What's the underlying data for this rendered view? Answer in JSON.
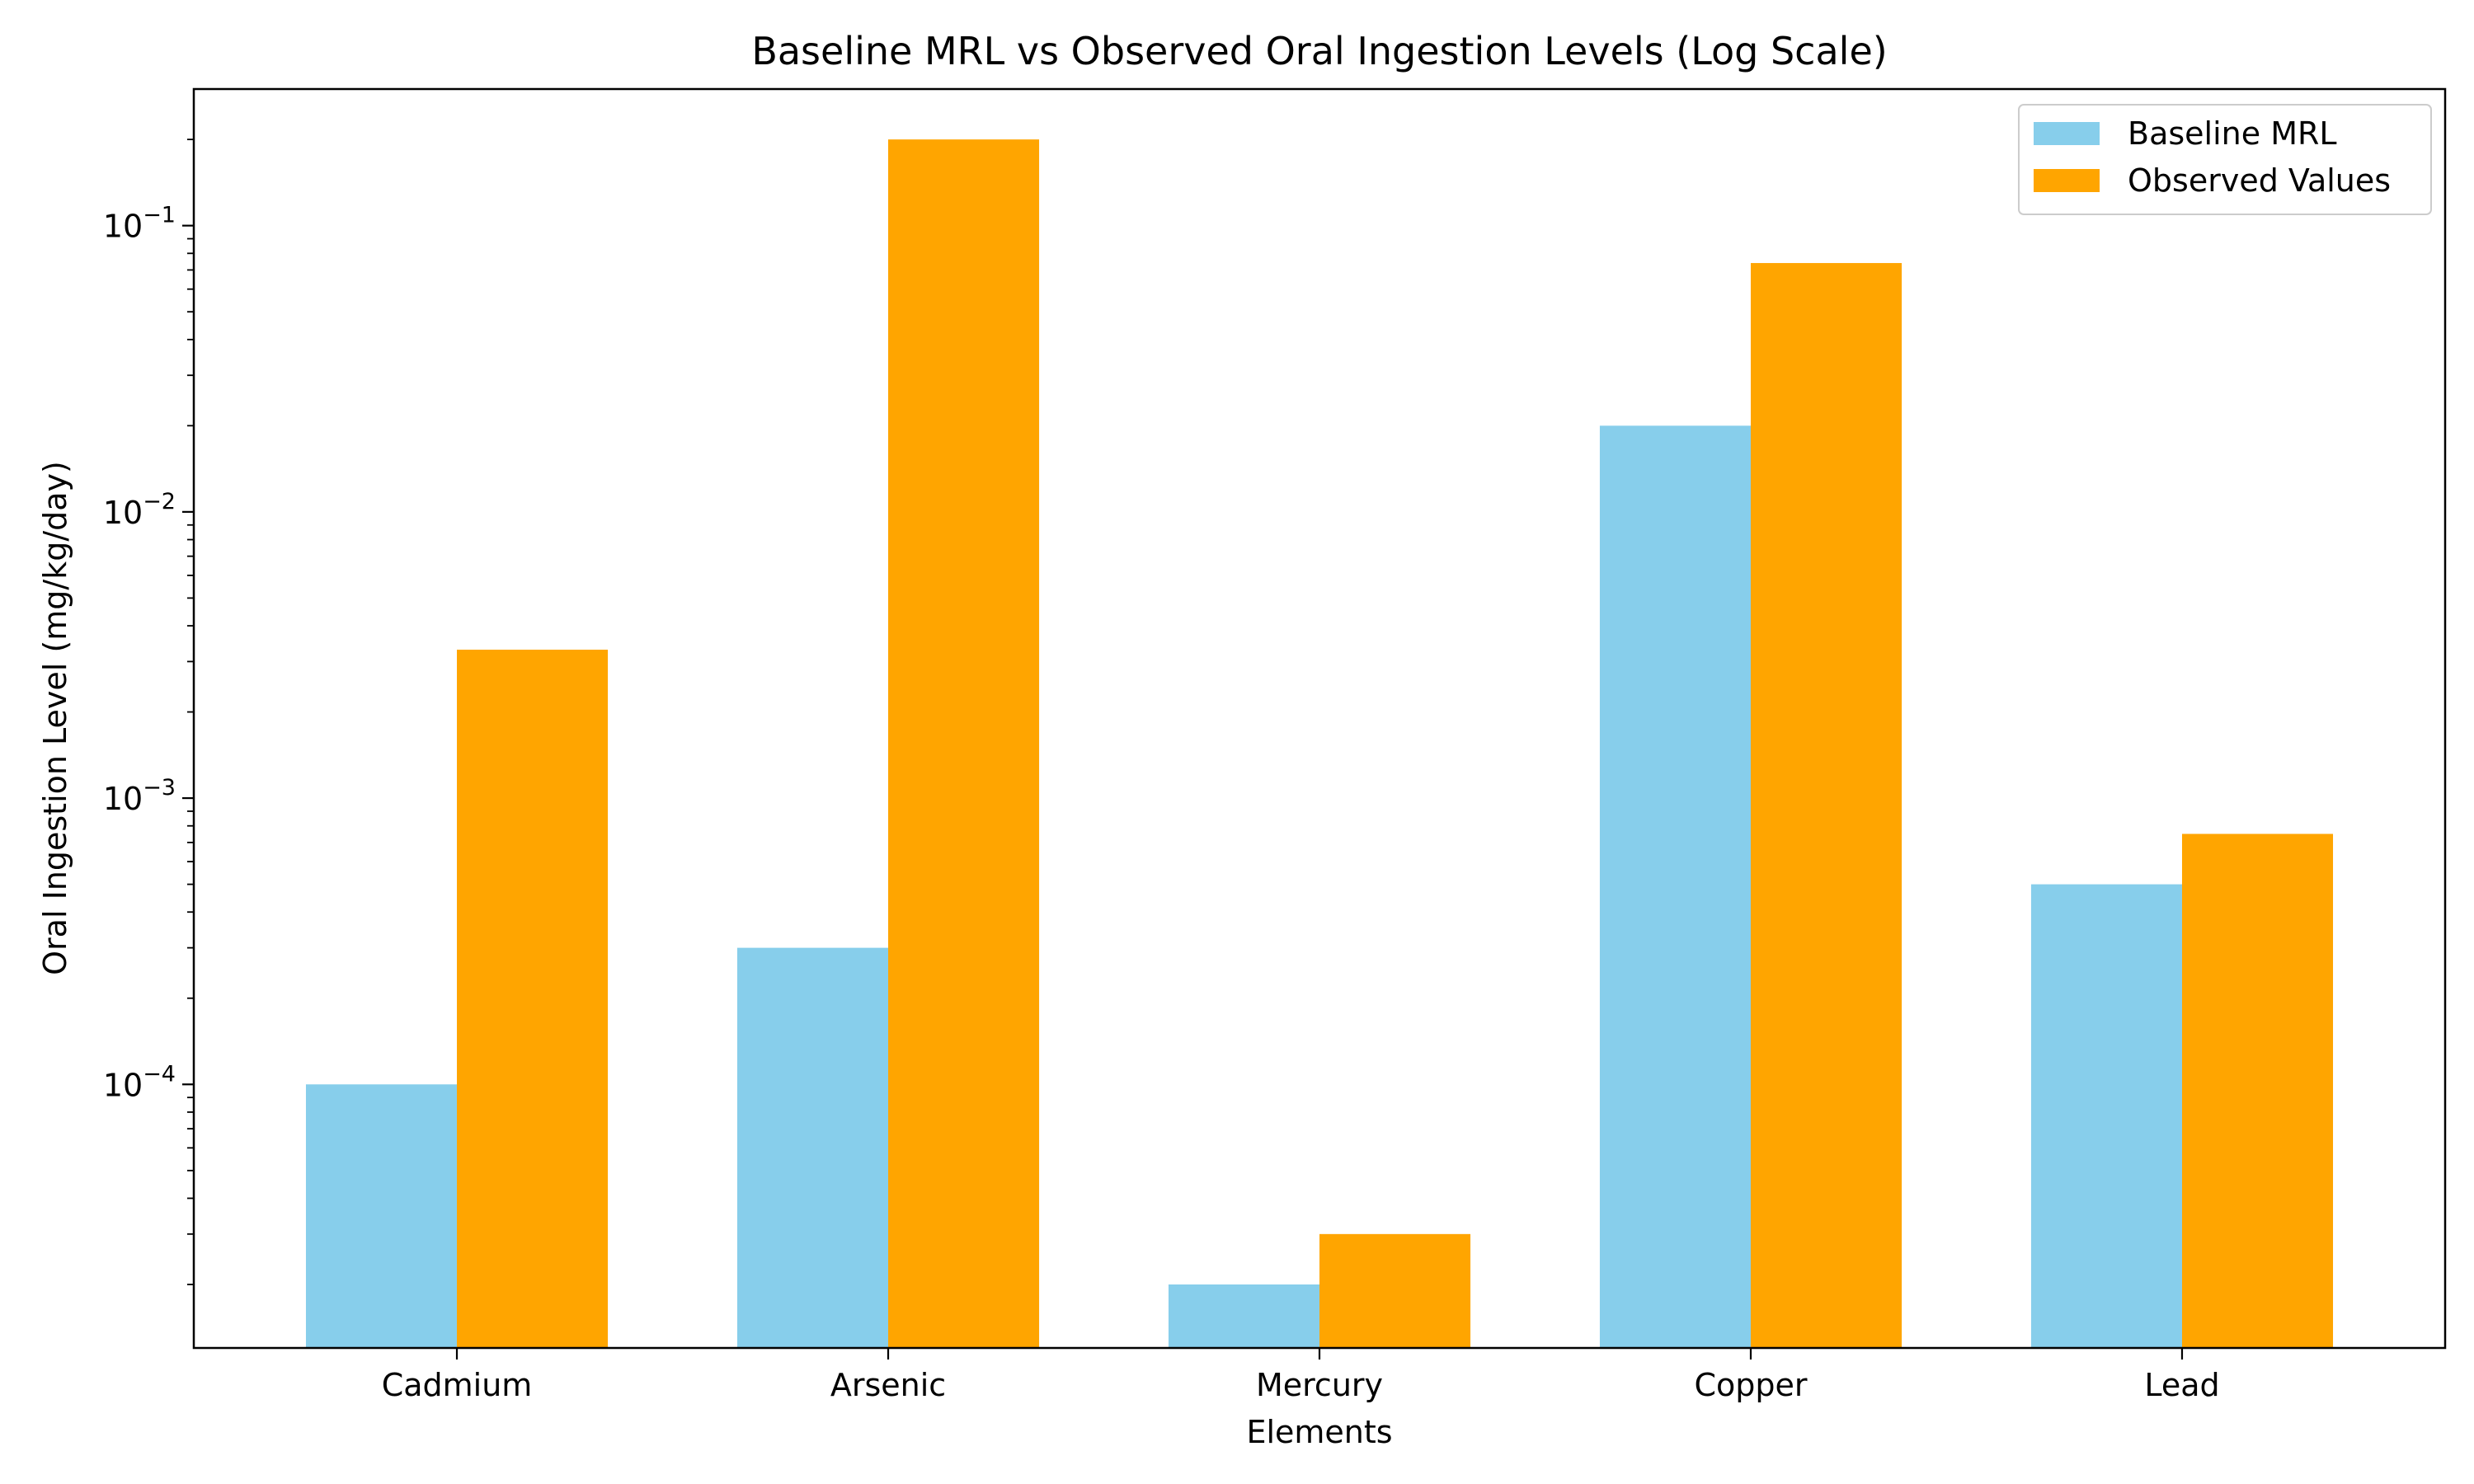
{
  "chart_data": {
    "type": "bar",
    "title": "Baseline MRL vs Observed Oral Ingestion Levels (Log Scale)",
    "xlabel": "Elements",
    "ylabel": "Oral Ingestion Level (mg/kg/day)",
    "yscale": "log",
    "ylim": [
      1.2e-05,
      0.3
    ],
    "categories": [
      "Cadmium",
      "Arsenic",
      "Mercury",
      "Copper",
      "Lead"
    ],
    "series": [
      {
        "name": "Baseline MRL",
        "color": "#87CEEB",
        "values": [
          0.0001,
          0.0003,
          2e-05,
          0.02,
          0.0005
        ]
      },
      {
        "name": "Observed Values",
        "color": "#FFA500",
        "values": [
          0.0033,
          0.2,
          3e-05,
          0.074,
          0.00075
        ]
      }
    ],
    "yticks": [
      {
        "value": 0.0001,
        "base": "10",
        "exp": "−4"
      },
      {
        "value": 0.001,
        "base": "10",
        "exp": "−3"
      },
      {
        "value": 0.01,
        "base": "10",
        "exp": "−2"
      },
      {
        "value": 0.1,
        "base": "10",
        "exp": "−1"
      }
    ],
    "grid": false,
    "legend": "top-right"
  }
}
